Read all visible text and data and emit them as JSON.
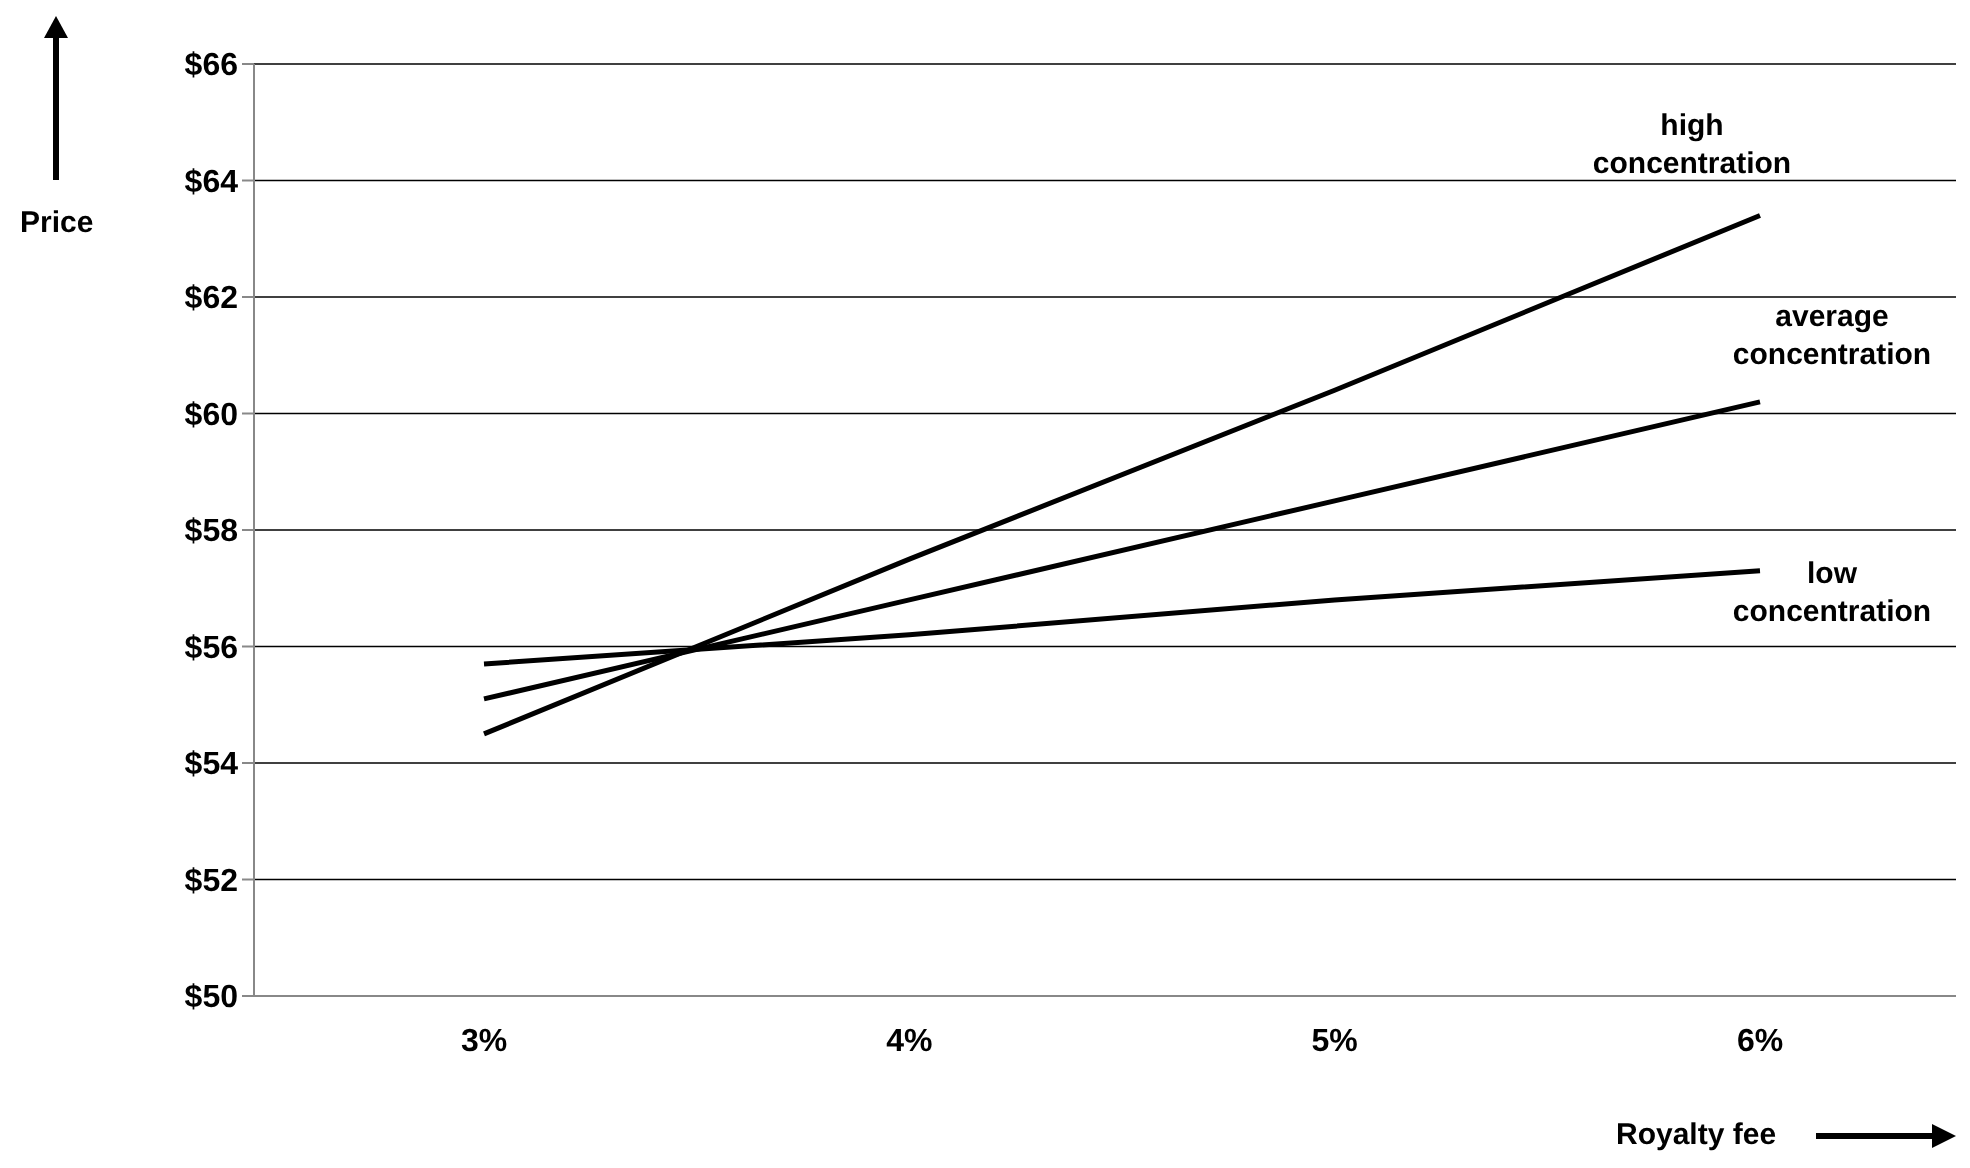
{
  "chart_data": {
    "type": "line",
    "xlabel": "Royalty fee",
    "ylabel": "Price",
    "categories": [
      "3%",
      "4%",
      "5%",
      "6%"
    ],
    "series": [
      {
        "name": "high concentration",
        "color": "#000000",
        "values": [
          54.5,
          57.5,
          60.4,
          63.4
        ]
      },
      {
        "name": "average concentration",
        "color": "#000000",
        "values": [
          55.1,
          56.8,
          58.5,
          60.2
        ]
      },
      {
        "name": "low concentration",
        "color": "#000000",
        "values": [
          55.7,
          56.2,
          56.8,
          57.3
        ]
      }
    ],
    "ylim": [
      50,
      66
    ],
    "yticks": [
      {
        "value": 50,
        "label": "$50"
      },
      {
        "value": 52,
        "label": "$52"
      },
      {
        "value": 54,
        "label": "$54"
      },
      {
        "value": 56,
        "label": "$56"
      },
      {
        "value": 58,
        "label": "$58"
      },
      {
        "value": 60,
        "label": "$60"
      },
      {
        "value": 62,
        "label": "$62"
      },
      {
        "value": 64,
        "label": "$64"
      },
      {
        "value": 66,
        "label": "$66"
      }
    ],
    "grid": "y",
    "legend": false,
    "marker": "none",
    "line_style": "solid"
  }
}
